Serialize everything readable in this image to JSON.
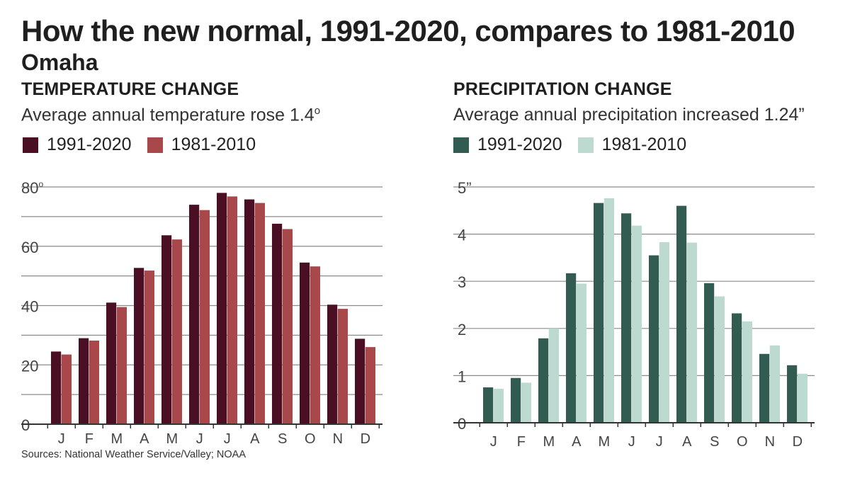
{
  "title": "How the new normal, 1991-2020, compares to 1981-2010",
  "subtitle": "Omaha",
  "source": "Sources: National Weather Service/Valley; NOAA",
  "temperature": {
    "heading": "TEMPERATURE CHANGE",
    "description": "Average annual temperature rose 1.4",
    "description_sup": "o",
    "legend": [
      {
        "label": "1991-2020",
        "color": "#4a0f22"
      },
      {
        "label": "1981-2010",
        "color": "#a9484a"
      }
    ]
  },
  "precipitation": {
    "heading": "PRECIPITATION CHANGE",
    "description": "Average annual precipitation increased 1.24”",
    "legend": [
      {
        "label": "1991-2020",
        "color": "#325c52"
      },
      {
        "label": "1981-2010",
        "color": "#bcdad0"
      }
    ]
  },
  "chart_data": [
    {
      "type": "bar",
      "title": "TEMPERATURE CHANGE",
      "categories": [
        "J",
        "F",
        "M",
        "A",
        "M",
        "J",
        "J",
        "A",
        "S",
        "O",
        "N",
        "D"
      ],
      "series": [
        {
          "name": "1991-2020",
          "color": "#4a0f22",
          "values": [
            24.5,
            29,
            41,
            52.7,
            63.7,
            74,
            78,
            75.8,
            67.6,
            54.5,
            40.3,
            28.8
          ]
        },
        {
          "name": "1981-2010",
          "color": "#a9484a",
          "values": [
            23.5,
            28.2,
            39.5,
            51.8,
            62.3,
            72.2,
            76.8,
            74.6,
            65.8,
            53.2,
            38.9,
            26
          ]
        }
      ],
      "ylim": [
        0,
        80
      ],
      "yticks": [
        0,
        20,
        40,
        60,
        80
      ],
      "ytick_labels": [
        "0",
        "20",
        "40",
        "60",
        "80"
      ],
      "ytick_suffix_top": "o",
      "gridlines": [
        10,
        20,
        30,
        40,
        50,
        60,
        70,
        80
      ]
    },
    {
      "type": "bar",
      "title": "PRECIPITATION CHANGE",
      "categories": [
        "J",
        "F",
        "M",
        "A",
        "M",
        "J",
        "J",
        "A",
        "S",
        "O",
        "N",
        "D"
      ],
      "series": [
        {
          "name": "1991-2020",
          "color": "#325c52",
          "values": [
            0.75,
            0.95,
            1.79,
            3.17,
            4.66,
            4.44,
            3.55,
            4.6,
            2.96,
            2.32,
            1.46,
            1.22
          ]
        },
        {
          "name": "1981-2010",
          "color": "#bcdad0",
          "values": [
            0.72,
            0.85,
            2.0,
            2.95,
            4.76,
            4.18,
            3.83,
            3.82,
            2.68,
            2.15,
            1.64,
            1.04
          ]
        }
      ],
      "ylim": [
        0,
        5
      ],
      "yticks": [
        0,
        1,
        2,
        3,
        4,
        5
      ],
      "ytick_labels": [
        "0",
        "1",
        "2",
        "3",
        "4",
        "5”"
      ],
      "gridlines": [
        1,
        2,
        3,
        4,
        5
      ]
    }
  ]
}
